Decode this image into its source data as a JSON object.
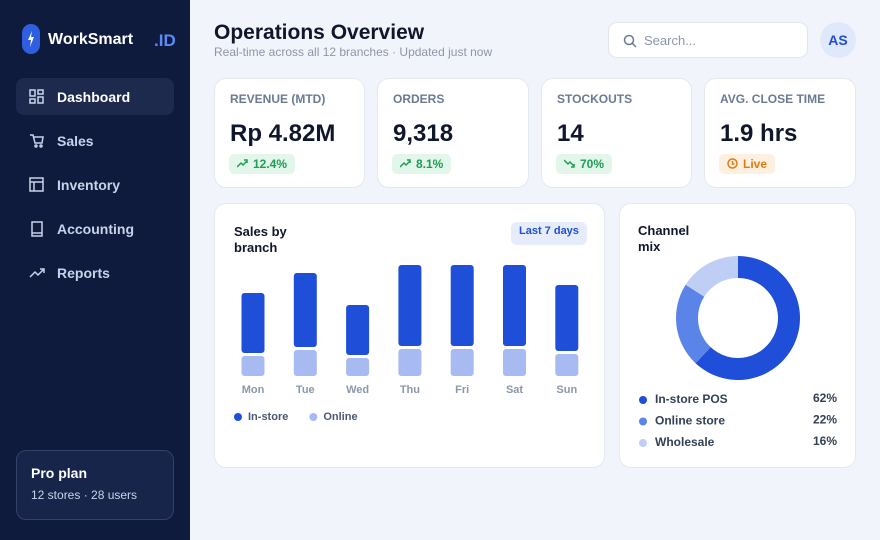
{
  "sidebar": {
    "brand": "WorkSmart",
    "brand_suffix": ".ID",
    "nav": [
      "Dashboard",
      "Sales",
      "Inventory",
      "Accounting",
      "Reports"
    ],
    "plan": {
      "title": "Pro plan",
      "detail": "12 stores · 28 users"
    }
  },
  "header": {
    "title": "Operations Overview",
    "subtitle": "Real-time across all 12 branches · Updated just now",
    "search_placeholder": "Search...",
    "avatar": "AS"
  },
  "kpis": [
    {
      "label": "REVENUE (MTD)",
      "value": "Rp 4.82M",
      "badge": "12.4%"
    },
    {
      "label": "ORDERS",
      "value": "9,318",
      "badge": "8.1%"
    },
    {
      "label": "STOCKOUTS",
      "value": "14",
      "badge": "70%"
    },
    {
      "label": "AVG. CLOSE TIME",
      "value": "1.9 hrs",
      "badge": "Live"
    }
  ],
  "chart_data": [
    {
      "type": "bar",
      "stacked": true,
      "title": "Sales by branch",
      "subtitle": "Last 7 days",
      "categories": [
        "Mon",
        "Tue",
        "Wed",
        "Thu",
        "Fri",
        "Sat",
        "Sun"
      ],
      "series": [
        {
          "name": "In-store",
          "color": "#1f4fd8",
          "values": [
            60,
            74,
            50,
            81,
            81,
            81,
            66
          ]
        },
        {
          "name": "Online",
          "color": "#a7bbf2",
          "values": [
            20,
            26,
            18,
            27,
            27,
            27,
            22
          ]
        }
      ]
    },
    {
      "type": "donut",
      "title": "Channel mix",
      "categories": [
        "In-store POS",
        "Online store",
        "Wholesale"
      ],
      "values": [
        62,
        22,
        16
      ],
      "value_labels": [
        "62%",
        "22%",
        "16%"
      ],
      "colors": [
        "#1f4fd8",
        "#5b84e8",
        "#bfcef5"
      ]
    }
  ]
}
